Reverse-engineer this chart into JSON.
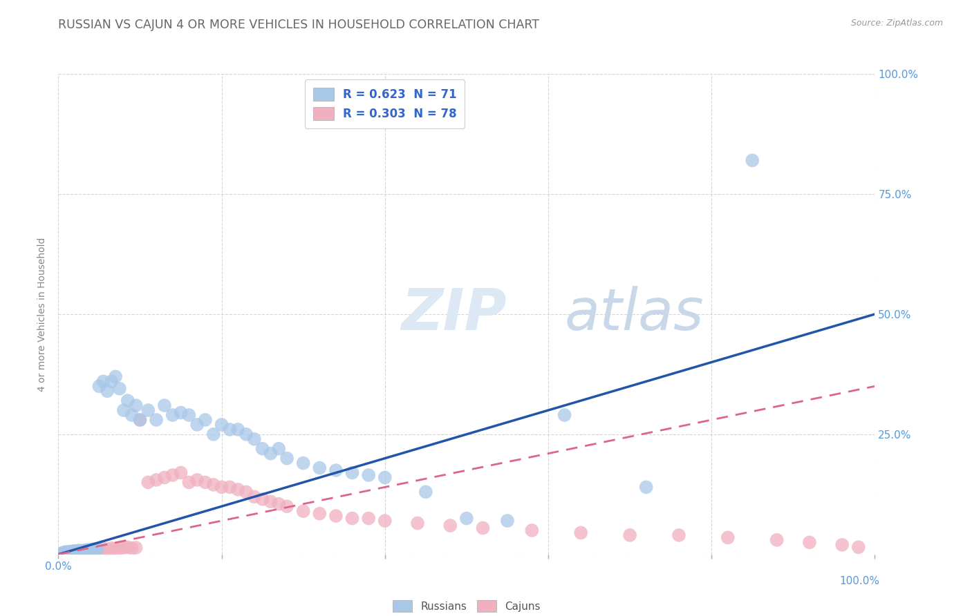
{
  "title": "RUSSIAN VS CAJUN 4 OR MORE VEHICLES IN HOUSEHOLD CORRELATION CHART",
  "source": "Source: ZipAtlas.com",
  "ylabel": "4 or more Vehicles in Household",
  "watermark_zip": "ZIP",
  "watermark_atlas": "atlas",
  "russian_color": "#a8c8e8",
  "cajun_color": "#f0b0c0",
  "russian_line_color": "#2255aa",
  "cajun_line_color": "#dd6688",
  "background_color": "#ffffff",
  "grid_color": "#cccccc",
  "tick_color": "#5599dd",
  "xlim": [
    0.0,
    1.0
  ],
  "ylim": [
    0.0,
    1.0
  ],
  "russian_x": [
    0.005,
    0.007,
    0.008,
    0.009,
    0.01,
    0.011,
    0.012,
    0.013,
    0.014,
    0.015,
    0.016,
    0.017,
    0.018,
    0.019,
    0.02,
    0.022,
    0.023,
    0.024,
    0.025,
    0.026,
    0.028,
    0.03,
    0.032,
    0.034,
    0.036,
    0.038,
    0.04,
    0.042,
    0.045,
    0.048,
    0.05,
    0.055,
    0.06,
    0.065,
    0.07,
    0.075,
    0.08,
    0.085,
    0.09,
    0.095,
    0.1,
    0.11,
    0.12,
    0.13,
    0.14,
    0.15,
    0.16,
    0.17,
    0.18,
    0.19,
    0.2,
    0.21,
    0.22,
    0.23,
    0.24,
    0.25,
    0.26,
    0.27,
    0.28,
    0.3,
    0.32,
    0.34,
    0.36,
    0.38,
    0.4,
    0.45,
    0.5,
    0.55,
    0.62,
    0.72,
    0.85
  ],
  "russian_y": [
    0.003,
    0.004,
    0.003,
    0.005,
    0.004,
    0.003,
    0.005,
    0.004,
    0.006,
    0.005,
    0.004,
    0.006,
    0.005,
    0.007,
    0.006,
    0.005,
    0.007,
    0.006,
    0.008,
    0.007,
    0.006,
    0.008,
    0.007,
    0.009,
    0.008,
    0.01,
    0.009,
    0.011,
    0.01,
    0.012,
    0.35,
    0.36,
    0.34,
    0.36,
    0.37,
    0.345,
    0.3,
    0.32,
    0.29,
    0.31,
    0.28,
    0.3,
    0.28,
    0.31,
    0.29,
    0.295,
    0.29,
    0.27,
    0.28,
    0.25,
    0.27,
    0.26,
    0.26,
    0.25,
    0.24,
    0.22,
    0.21,
    0.22,
    0.2,
    0.19,
    0.18,
    0.175,
    0.17,
    0.165,
    0.16,
    0.13,
    0.075,
    0.07,
    0.29,
    0.14,
    0.82
  ],
  "cajun_x": [
    0.004,
    0.006,
    0.007,
    0.008,
    0.009,
    0.01,
    0.011,
    0.012,
    0.013,
    0.014,
    0.015,
    0.016,
    0.017,
    0.018,
    0.019,
    0.02,
    0.022,
    0.023,
    0.024,
    0.025,
    0.026,
    0.028,
    0.03,
    0.032,
    0.034,
    0.036,
    0.038,
    0.04,
    0.042,
    0.045,
    0.048,
    0.05,
    0.055,
    0.06,
    0.065,
    0.07,
    0.075,
    0.08,
    0.085,
    0.09,
    0.095,
    0.1,
    0.11,
    0.12,
    0.13,
    0.14,
    0.15,
    0.16,
    0.17,
    0.18,
    0.19,
    0.2,
    0.21,
    0.22,
    0.23,
    0.24,
    0.25,
    0.26,
    0.27,
    0.28,
    0.3,
    0.32,
    0.34,
    0.36,
    0.38,
    0.4,
    0.44,
    0.48,
    0.52,
    0.58,
    0.64,
    0.7,
    0.76,
    0.82,
    0.88,
    0.92,
    0.96,
    0.98
  ],
  "cajun_y": [
    0.002,
    0.003,
    0.003,
    0.004,
    0.003,
    0.004,
    0.003,
    0.004,
    0.003,
    0.005,
    0.004,
    0.003,
    0.005,
    0.004,
    0.006,
    0.005,
    0.004,
    0.006,
    0.005,
    0.007,
    0.006,
    0.005,
    0.007,
    0.006,
    0.008,
    0.007,
    0.009,
    0.008,
    0.01,
    0.009,
    0.011,
    0.01,
    0.012,
    0.011,
    0.013,
    0.012,
    0.013,
    0.014,
    0.015,
    0.013,
    0.014,
    0.28,
    0.15,
    0.155,
    0.16,
    0.165,
    0.17,
    0.15,
    0.155,
    0.15,
    0.145,
    0.14,
    0.14,
    0.135,
    0.13,
    0.12,
    0.115,
    0.11,
    0.105,
    0.1,
    0.09,
    0.085,
    0.08,
    0.075,
    0.075,
    0.07,
    0.065,
    0.06,
    0.055,
    0.05,
    0.045,
    0.04,
    0.04,
    0.035,
    0.03,
    0.025,
    0.02,
    0.015
  ],
  "russian_line_x0": 0.0,
  "russian_line_y0": 0.0,
  "russian_line_x1": 1.0,
  "russian_line_y1": 0.5,
  "cajun_line_x0": 0.0,
  "cajun_line_y0": 0.0,
  "cajun_line_x1": 1.0,
  "cajun_line_y1": 0.35
}
